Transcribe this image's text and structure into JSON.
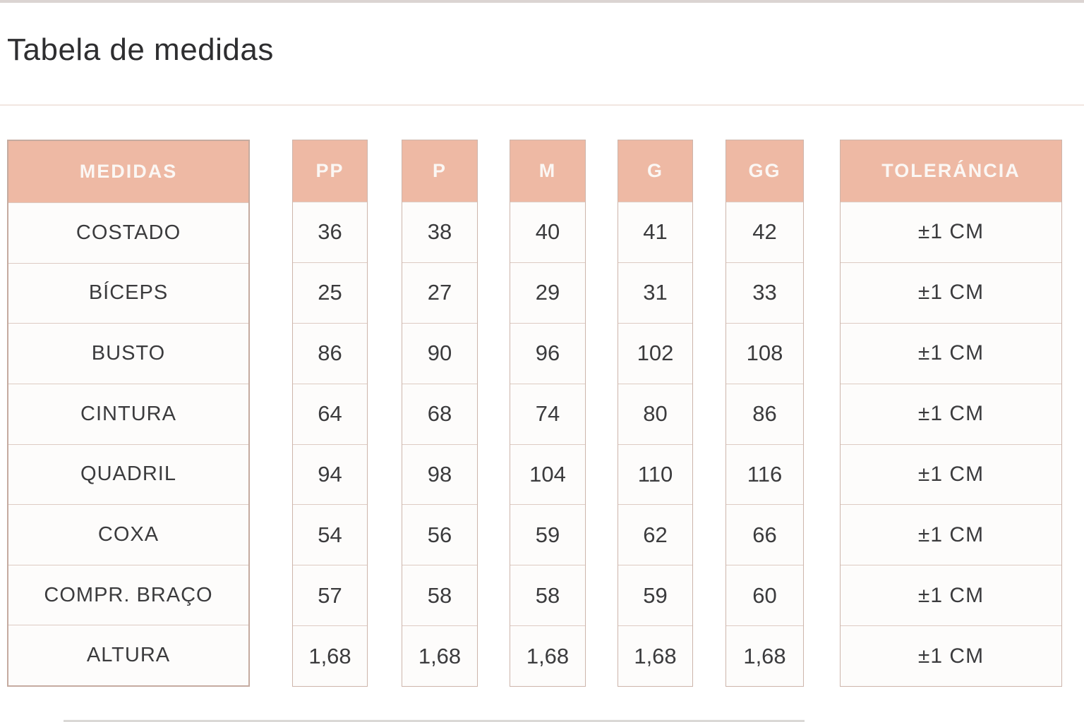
{
  "page": {
    "title": "Tabela de medidas"
  },
  "colors": {
    "header_bg": "#EEB9A4",
    "header_text": "#FBF7F4",
    "cell_bg": "#FDFCFB",
    "cell_text": "#3B3B3D",
    "border": "#CDB5AB",
    "title_text": "#2E2E30",
    "top_stripe": "#DBD4D2",
    "title_divider": "#F2E6E1"
  },
  "table": {
    "headers": [
      "MEDIDAS",
      "PP",
      "P",
      "M",
      "G",
      "GG",
      "TOLERÁNCIA"
    ],
    "rows": [
      {
        "label": "COSTADO",
        "values": [
          "36",
          "38",
          "40",
          "41",
          "42"
        ],
        "tolerance": "±1 CM"
      },
      {
        "label": "BÍCEPS",
        "values": [
          "25",
          "27",
          "29",
          "31",
          "33"
        ],
        "tolerance": "±1 CM"
      },
      {
        "label": "BUSTO",
        "values": [
          "86",
          "90",
          "96",
          "102",
          "108"
        ],
        "tolerance": "±1 CM"
      },
      {
        "label": "CINTURA",
        "values": [
          "64",
          "68",
          "74",
          "80",
          "86"
        ],
        "tolerance": "±1 CM"
      },
      {
        "label": "QUADRIL",
        "values": [
          "94",
          "98",
          "104",
          "110",
          "116"
        ],
        "tolerance": "±1 CM"
      },
      {
        "label": "COXA",
        "values": [
          "54",
          "56",
          "59",
          "62",
          "66"
        ],
        "tolerance": "±1 CM"
      },
      {
        "label": "COMPR. BRAÇO",
        "values": [
          "57",
          "58",
          "58",
          "59",
          "60"
        ],
        "tolerance": "±1 CM"
      },
      {
        "label": "ALTURA",
        "values": [
          "1,68",
          "1,68",
          "1,68",
          "1,68",
          "1,68"
        ],
        "tolerance": "±1 CM"
      }
    ]
  }
}
